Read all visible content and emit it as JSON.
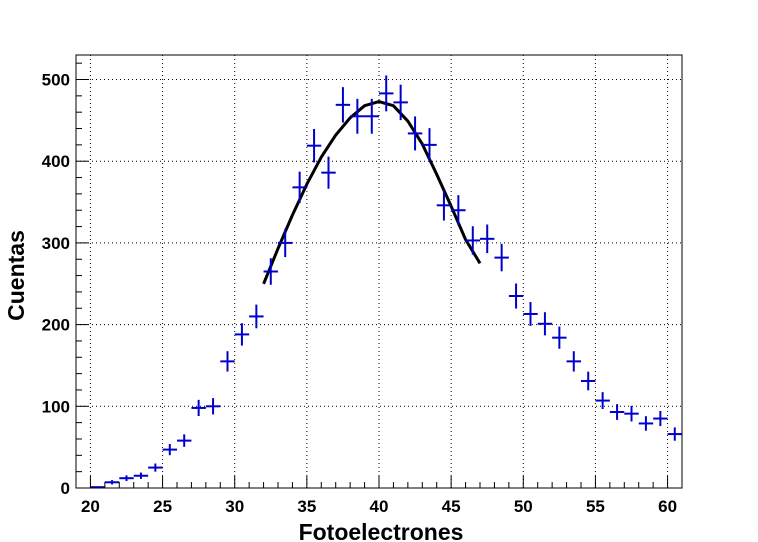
{
  "chart_data": {
    "type": "scatter",
    "title": "",
    "xlabel": "Fotoelectrones",
    "ylabel": "Cuentas",
    "xlim": [
      19,
      61
    ],
    "ylim": [
      0,
      530
    ],
    "grid": true,
    "x_ticks": [
      "20",
      "25",
      "30",
      "35",
      "40",
      "45",
      "50",
      "55",
      "60"
    ],
    "y_ticks": [
      "0",
      "100",
      "200",
      "300",
      "400",
      "500"
    ],
    "colors": {
      "points": "#0000cc",
      "fit": "#000000",
      "axis": "#000000"
    },
    "series": [
      {
        "x": [
          20.5,
          21.5,
          22.5,
          23.5,
          24.5,
          25.5,
          26.5,
          27.5,
          28.5,
          29.5,
          30.5,
          31.5,
          32.5,
          33.5,
          34.5,
          35.5,
          36.5,
          37.5,
          38.5,
          39.5,
          40.5,
          41.5,
          42.5,
          43.5,
          44.5,
          45.5,
          46.5,
          47.5,
          48.5,
          49.5,
          50.5,
          51.5,
          52.5,
          53.5,
          54.5,
          55.5,
          56.5,
          57.5,
          58.5,
          59.5,
          60.5
        ],
        "y": [
          1,
          7,
          12,
          15,
          25,
          47,
          58,
          98,
          100,
          155,
          188,
          210,
          265,
          300,
          368,
          419,
          386,
          469,
          455,
          455,
          483,
          472,
          434,
          420,
          346,
          340,
          303,
          305,
          282,
          235,
          213,
          201,
          184,
          155,
          131,
          107,
          93,
          91,
          79,
          85,
          66
        ]
      },
      {
        "type": "line",
        "x": [
          32,
          33,
          34,
          35,
          36,
          37,
          38,
          39,
          40,
          41,
          42,
          43,
          44,
          45,
          46,
          47
        ],
        "y": [
          250,
          293,
          334,
          372,
          405,
          432,
          453,
          468,
          473,
          468,
          449,
          421,
          384,
          345,
          304,
          275
        ]
      }
    ]
  }
}
